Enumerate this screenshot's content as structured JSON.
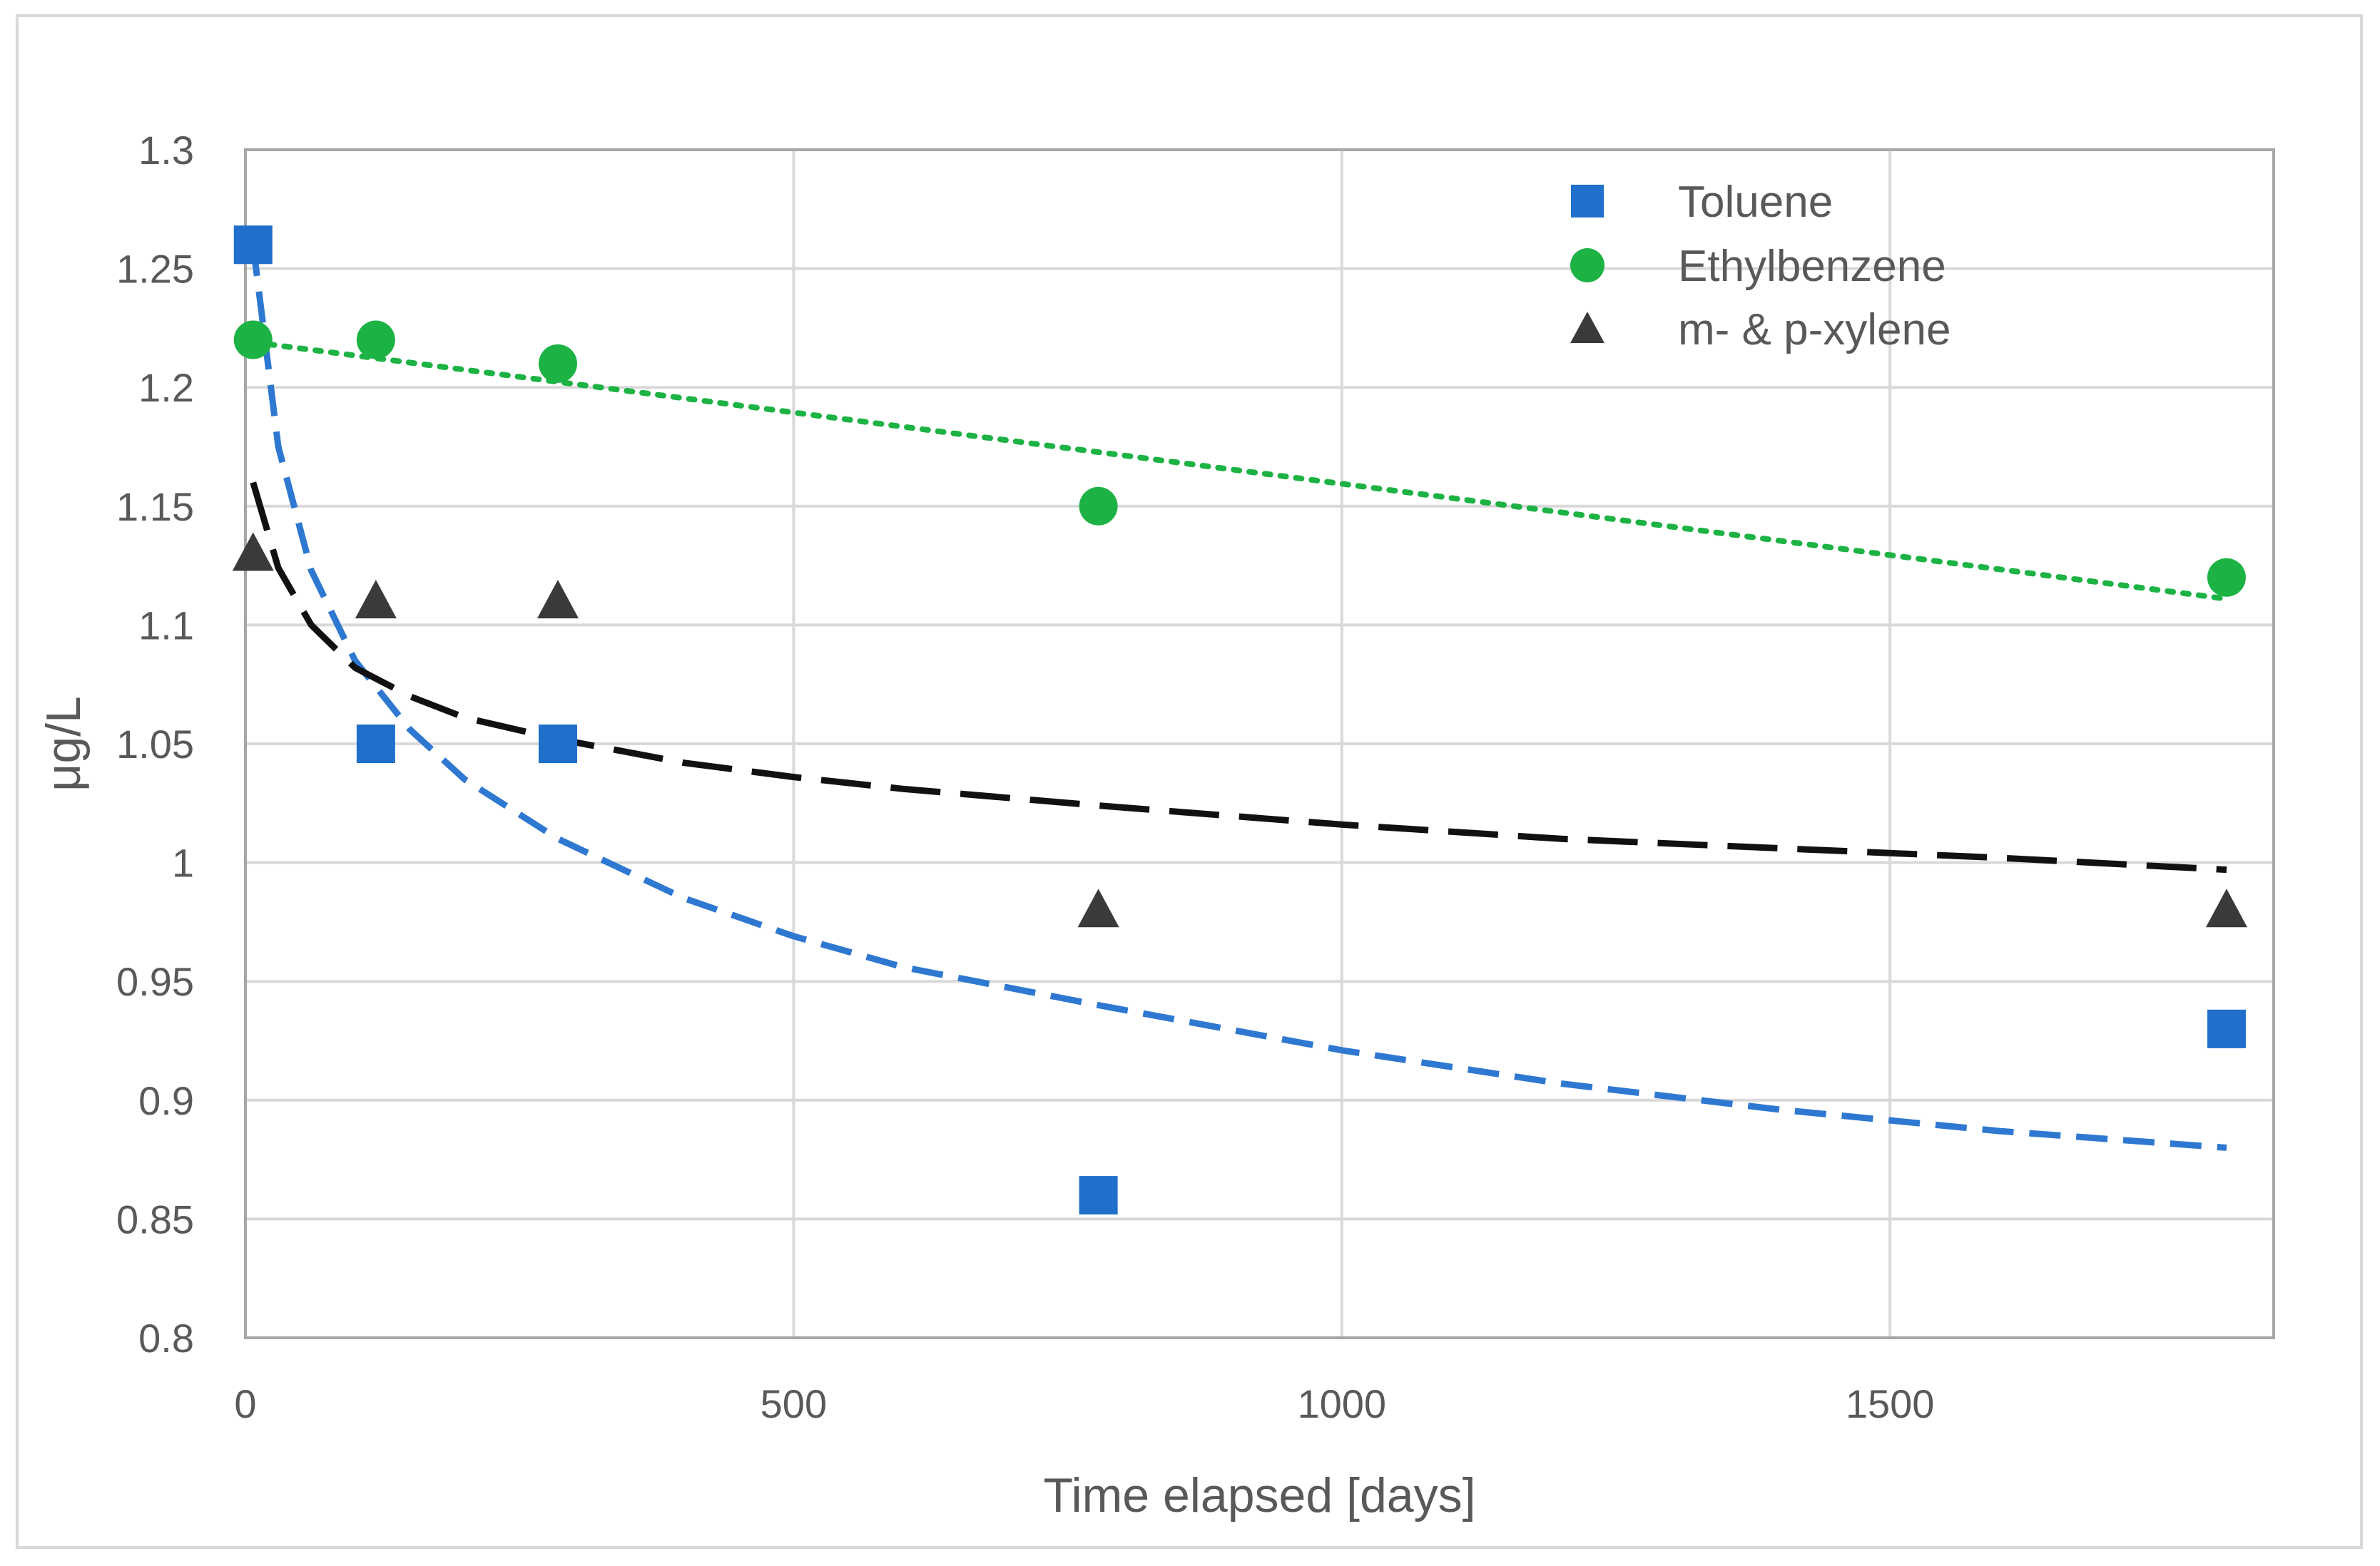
{
  "chart_data": {
    "type": "scatter",
    "title": "",
    "xlabel": "Time elapsed [days]",
    "ylabel": "μg/L",
    "xlim": [
      0,
      1850
    ],
    "ylim": [
      0.8,
      1.3
    ],
    "x_ticks": [
      "0",
      "500",
      "1000",
      "1500"
    ],
    "y_ticks": [
      "0.8",
      "0.85",
      "0.9",
      "0.95",
      "1",
      "1.05",
      "1.1",
      "1.15",
      "1.2",
      "1.25",
      "1.3"
    ],
    "grid": true,
    "legend_position": "top-right",
    "series": [
      {
        "name": "Toluene",
        "marker": "square",
        "color": "#1f6fcb",
        "x": [
          7,
          119,
          285,
          778,
          1807
        ],
        "y": [
          1.26,
          1.05,
          1.05,
          0.86,
          0.93
        ],
        "trendline": {
          "type": "power",
          "style": "dashed",
          "x": [
            7,
            30,
            60,
            100,
            150,
            200,
            285,
            400,
            500,
            600,
            778,
            1000,
            1200,
            1400,
            1600,
            1807
          ],
          "y": [
            1.26,
            1.175,
            1.123,
            1.085,
            1.056,
            1.035,
            1.01,
            0.985,
            0.969,
            0.956,
            0.94,
            0.921,
            0.907,
            0.896,
            0.887,
            0.88
          ]
        }
      },
      {
        "name": "Ethylbenzene",
        "marker": "circle",
        "color": "#1db244",
        "x": [
          7,
          119,
          285,
          778,
          1807
        ],
        "y": [
          1.22,
          1.22,
          1.21,
          1.15,
          1.12
        ],
        "trendline": {
          "type": "linear",
          "style": "dotted",
          "x": [
            7,
            1807
          ],
          "y": [
            1.219,
            1.111
          ]
        }
      },
      {
        "name": "m- & p-xylene",
        "marker": "triangle",
        "color": "#3a3a3a",
        "x": [
          7,
          119,
          285,
          778,
          1807
        ],
        "y": [
          1.13,
          1.11,
          1.11,
          0.98,
          0.98
        ],
        "trendline": {
          "type": "log",
          "style": "long-dashed",
          "x": [
            7,
            30,
            60,
            100,
            150,
            200,
            285,
            400,
            500,
            600,
            778,
            1000,
            1200,
            1400,
            1600,
            1807
          ],
          "y": [
            1.16,
            1.124,
            1.1,
            1.082,
            1.07,
            1.061,
            1.052,
            1.042,
            1.036,
            1.031,
            1.024,
            1.016,
            1.01,
            1.006,
            1.002,
            0.997
          ]
        }
      }
    ]
  }
}
